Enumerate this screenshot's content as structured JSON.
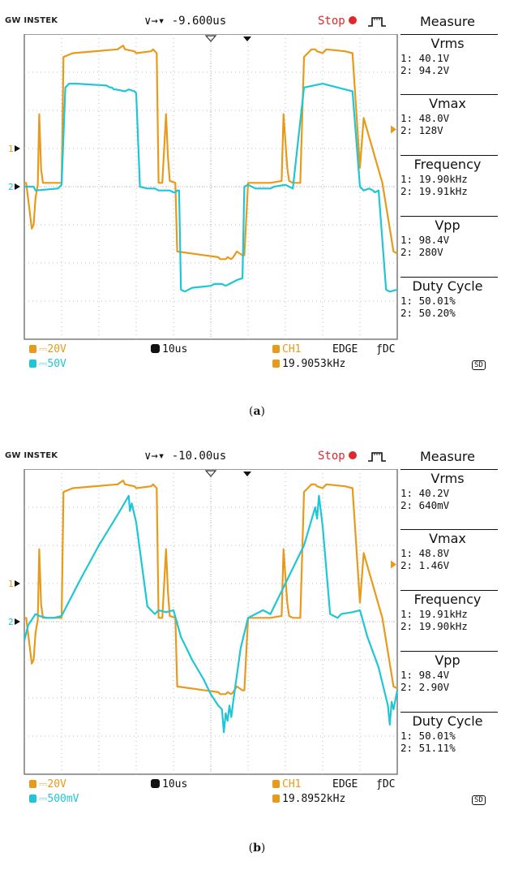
{
  "colors": {
    "ch1": "#e89a1a",
    "ch2": "#1fc6d6",
    "grid": "#bdbdbd",
    "frame": "#7a7a7a",
    "stop": "#e0282a"
  },
  "scopes": [
    {
      "caption": "a",
      "brand": "GW INSTEK",
      "timebase_pos": "-9.600us",
      "run_state": "Stop",
      "measure_title": "Measure",
      "measurements": [
        {
          "name": "Vrms",
          "ch1": "1: 40.1V",
          "ch2": "2: 94.2V"
        },
        {
          "name": "Vmax",
          "ch1": "1: 48.0V",
          "ch2": "2: 128V"
        },
        {
          "name": "Frequency",
          "ch1": "1: 19.90kHz",
          "ch2": "2: 19.91kHz"
        },
        {
          "name": "Vpp",
          "ch1": "1: 98.4V",
          "ch2": "2: 280V"
        },
        {
          "name": "Duty Cycle",
          "ch1": "1: 50.01%",
          "ch2": "2: 50.20%"
        }
      ],
      "bottom": {
        "ch1_scale": "20V",
        "ch2_scale": "50V",
        "timebase": "10us",
        "trigger_source": "CH1",
        "trigger_type": "EDGE",
        "coupling": "DC",
        "trigger_freq": "19.9053kHz",
        "sd_label": "SD"
      },
      "markers": {
        "ch1": "1",
        "ch2": "2"
      }
    },
    {
      "caption": "b",
      "brand": "GW INSTEK",
      "timebase_pos": "-10.00us",
      "run_state": "Stop",
      "measure_title": "Measure",
      "measurements": [
        {
          "name": "Vrms",
          "ch1": "1: 40.2V",
          "ch2": "2: 640mV"
        },
        {
          "name": "Vmax",
          "ch1": "1: 48.8V",
          "ch2": "2: 1.46V"
        },
        {
          "name": "Frequency",
          "ch1": "1: 19.91kHz",
          "ch2": "2: 19.90kHz"
        },
        {
          "name": "Vpp",
          "ch1": "1: 98.4V",
          "ch2": "2: 2.90V"
        },
        {
          "name": "Duty Cycle",
          "ch1": "1: 50.01%",
          "ch2": "2: 51.11%"
        }
      ],
      "bottom": {
        "ch1_scale": "20V",
        "ch2_scale": "500mV",
        "timebase": "10us",
        "trigger_source": "CH1",
        "trigger_type": "EDGE",
        "coupling": "DC",
        "trigger_freq": "19.8952kHz",
        "sd_label": "SD"
      },
      "markers": {
        "ch1": "1",
        "ch2": "2"
      }
    }
  ],
  "chart_data": [
    {
      "type": "line",
      "title": "",
      "xlabel": "",
      "ylabel": "",
      "x_divisions": 10,
      "y_divisions": 8,
      "xlim": [
        0,
        10
      ],
      "ylim": [
        -4,
        4
      ],
      "grid": true,
      "legend": "none",
      "series": [
        {
          "name": "1",
          "ref_div": 1,
          "x": [
            0,
            0.05,
            0.2,
            0.25,
            0.3,
            0.36,
            0.4,
            0.45,
            0.5,
            0.55,
            0.6,
            0.7,
            0.9,
            1.0,
            1.05,
            1.3,
            2.5,
            2.65,
            2.7,
            2.95,
            3.0,
            3.4,
            3.45,
            3.55,
            3.6,
            3.7,
            3.8,
            3.85,
            3.9,
            4.05,
            4.1,
            5.2,
            5.25,
            5.4,
            5.45,
            5.55,
            5.6,
            5.7,
            5.85,
            5.9,
            6.0,
            6.6,
            6.9,
            6.95,
            7.05,
            7.1,
            7.2,
            7.35,
            7.4,
            7.5,
            7.6,
            7.7,
            7.8,
            7.85,
            8.0,
            8.1,
            8.6,
            8.8,
            9.0,
            9.1,
            9.6,
            9.9,
            10.0
          ],
          "values": [
            0.1,
            0.1,
            -1.1,
            -1.0,
            -0.3,
            0.05,
            1.9,
            0.45,
            0.1,
            0.1,
            0.1,
            0.1,
            0.1,
            0.1,
            3.4,
            3.5,
            3.6,
            3.7,
            3.6,
            3.55,
            3.5,
            3.55,
            3.6,
            3.5,
            0.1,
            0.1,
            1.9,
            0.8,
            0.15,
            0.1,
            -1.7,
            -1.85,
            -1.9,
            -1.9,
            -1.85,
            -1.9,
            -1.85,
            -1.7,
            -1.8,
            -1.8,
            0.1,
            0.1,
            0.15,
            1.9,
            0.5,
            0.15,
            0.1,
            0.1,
            0.1,
            3.4,
            3.5,
            3.6,
            3.6,
            3.55,
            3.5,
            3.6,
            3.55,
            3.5,
            0.5,
            1.8,
            0.1,
            -1.7,
            -1.75
          ]
        },
        {
          "name": "2",
          "ref_div": 0,
          "x": [
            0,
            0.25,
            0.3,
            0.9,
            0.95,
            1.0,
            1.1,
            1.2,
            1.4,
            2.2,
            2.3,
            2.35,
            2.4,
            2.45,
            2.7,
            2.8,
            2.95,
            3.0,
            3.1,
            3.3,
            3.5,
            3.6,
            3.8,
            3.9,
            4.0,
            4.05,
            4.1,
            4.15,
            4.2,
            4.3,
            4.5,
            5.0,
            5.1,
            5.2,
            5.3,
            5.4,
            5.5,
            5.6,
            5.7,
            5.85,
            5.9,
            6.0,
            6.2,
            6.6,
            6.7,
            7.0,
            7.1,
            7.2,
            7.5,
            8.0,
            8.2,
            8.4,
            8.6,
            8.8,
            9.0,
            9.1,
            9.25,
            9.35,
            9.4,
            9.5,
            9.7,
            9.8,
            10.0
          ],
          "values": [
            0,
            0,
            -0.1,
            -0.05,
            0,
            0.05,
            2.6,
            2.7,
            2.7,
            2.65,
            2.6,
            2.6,
            2.55,
            2.55,
            2.5,
            2.55,
            2.5,
            2.45,
            0,
            -0.05,
            -0.05,
            -0.1,
            -0.1,
            -0.1,
            -0.15,
            -0.15,
            -0.1,
            -0.1,
            -2.7,
            -2.75,
            -2.65,
            -2.6,
            -2.55,
            -2.55,
            -2.55,
            -2.6,
            -2.55,
            -2.5,
            -2.45,
            -2.4,
            0,
            0.05,
            -0.05,
            -0.05,
            0,
            0.05,
            0,
            -0.05,
            2.6,
            2.7,
            2.65,
            2.6,
            2.55,
            2.5,
            0,
            -0.1,
            -0.05,
            -0.1,
            -0.15,
            -0.1,
            -2.7,
            -2.75,
            -2.7
          ]
        }
      ]
    },
    {
      "type": "line",
      "title": "",
      "xlabel": "",
      "ylabel": "",
      "x_divisions": 10,
      "y_divisions": 8,
      "xlim": [
        0,
        10
      ],
      "ylim": [
        -4,
        4
      ],
      "grid": true,
      "legend": "none",
      "series": [
        {
          "name": "1",
          "ref_div": 1,
          "x": [
            0,
            0.05,
            0.2,
            0.25,
            0.3,
            0.36,
            0.4,
            0.45,
            0.5,
            0.55,
            0.6,
            0.7,
            0.9,
            1.0,
            1.05,
            1.3,
            2.5,
            2.65,
            2.7,
            2.95,
            3.0,
            3.4,
            3.45,
            3.55,
            3.6,
            3.7,
            3.8,
            3.85,
            3.9,
            4.05,
            4.1,
            5.2,
            5.25,
            5.4,
            5.45,
            5.55,
            5.6,
            5.7,
            5.85,
            5.9,
            6.0,
            6.6,
            6.9,
            6.95,
            7.05,
            7.1,
            7.2,
            7.35,
            7.4,
            7.5,
            7.6,
            7.7,
            7.8,
            7.85,
            8.0,
            8.1,
            8.6,
            8.8,
            9.0,
            9.1,
            9.6,
            9.9,
            10.0
          ],
          "values": [
            0.1,
            0.1,
            -1.1,
            -1.0,
            -0.3,
            0.05,
            1.9,
            0.45,
            0.1,
            0.1,
            0.1,
            0.1,
            0.1,
            0.1,
            3.4,
            3.5,
            3.6,
            3.7,
            3.6,
            3.55,
            3.5,
            3.55,
            3.6,
            3.5,
            0.1,
            0.1,
            1.9,
            0.8,
            0.15,
            0.1,
            -1.7,
            -1.85,
            -1.9,
            -1.9,
            -1.85,
            -1.9,
            -1.85,
            -1.7,
            -1.8,
            -1.8,
            0.1,
            0.1,
            0.15,
            1.9,
            0.5,
            0.15,
            0.1,
            0.1,
            0.1,
            3.4,
            3.5,
            3.6,
            3.6,
            3.55,
            3.5,
            3.6,
            3.55,
            3.5,
            0.5,
            1.8,
            0.1,
            -1.7,
            -1.75
          ]
        },
        {
          "name": "2",
          "ref_div": 0,
          "x": [
            0,
            0.1,
            0.3,
            0.4,
            0.6,
            0.8,
            1.0,
            1.5,
            2.0,
            2.5,
            2.8,
            2.83,
            2.88,
            3.0,
            3.3,
            3.5,
            3.6,
            3.8,
            4.0,
            4.2,
            4.5,
            4.8,
            5.0,
            5.2,
            5.3,
            5.35,
            5.4,
            5.45,
            5.5,
            5.55,
            5.6,
            5.8,
            6.0,
            6.2,
            6.4,
            6.6,
            7.0,
            7.5,
            7.8,
            7.85,
            7.9,
            8.0,
            8.2,
            8.4,
            8.5,
            8.8,
            9.0,
            9.2,
            9.5,
            9.7,
            9.75,
            9.8,
            9.85,
            9.9,
            10.0
          ],
          "values": [
            -0.5,
            -0.1,
            0.2,
            0.15,
            0.1,
            0.1,
            0.15,
            1.1,
            2.0,
            2.8,
            3.3,
            2.9,
            3.1,
            2.6,
            0.4,
            0.2,
            0.3,
            0.25,
            0.3,
            -0.4,
            -1.0,
            -1.5,
            -1.9,
            -2.2,
            -2.3,
            -2.9,
            -2.4,
            -2.6,
            -2.2,
            -2.5,
            -2.1,
            -0.7,
            0.1,
            0.2,
            0.3,
            0.2,
            1.0,
            2.0,
            3.0,
            2.7,
            3.3,
            2.5,
            0.2,
            0.1,
            0.2,
            0.25,
            0.3,
            -0.4,
            -1.2,
            -2.0,
            -2.2,
            -2.7,
            -2.1,
            -2.3,
            -1.8
          ]
        }
      ]
    }
  ]
}
